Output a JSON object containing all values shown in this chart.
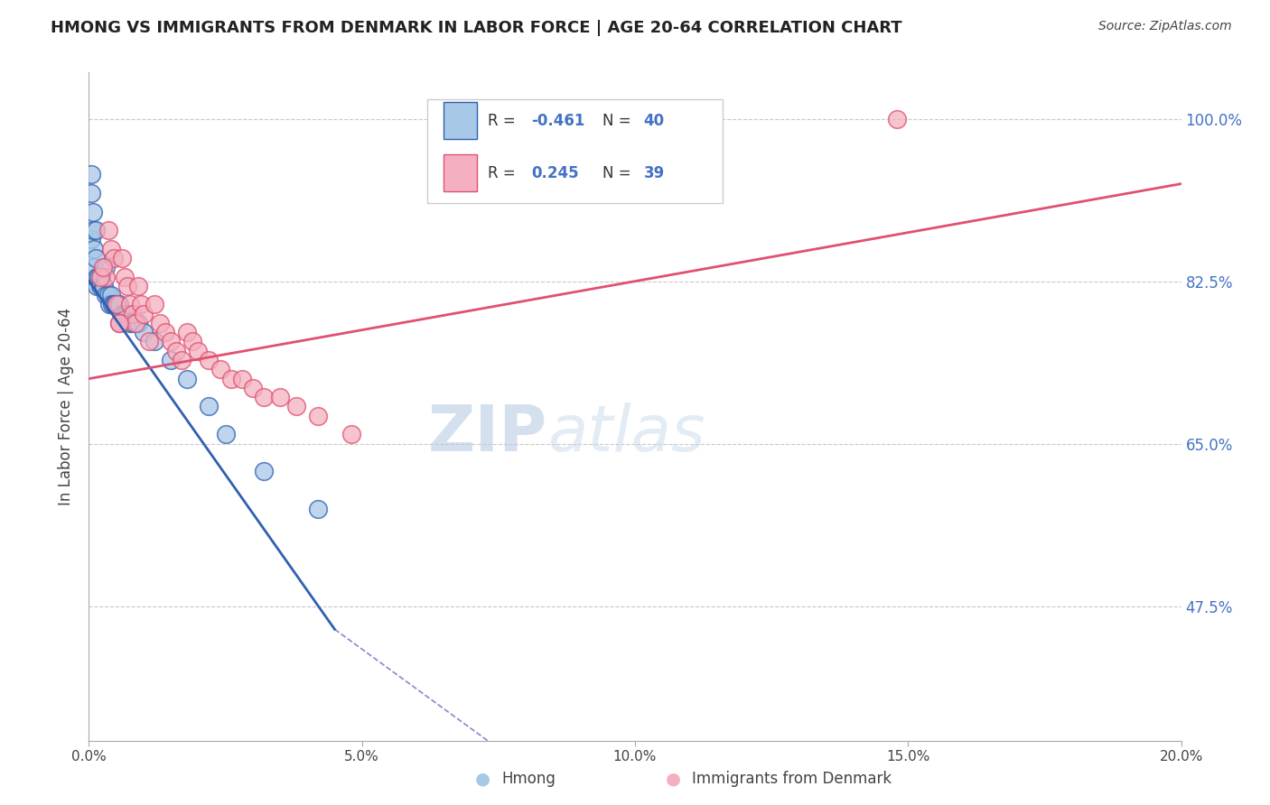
{
  "title": "HMONG VS IMMIGRANTS FROM DENMARK IN LABOR FORCE | AGE 20-64 CORRELATION CHART",
  "source": "Source: ZipAtlas.com",
  "ylabel": "In Labor Force | Age 20-64",
  "legend_label1": "Hmong",
  "legend_label2": "Immigrants from Denmark",
  "xlim": [
    0.0,
    20.0
  ],
  "ylim": [
    33.0,
    105.0
  ],
  "yticks": [
    47.5,
    65.0,
    82.5,
    100.0
  ],
  "xticks": [
    0.0,
    5.0,
    10.0,
    15.0,
    20.0
  ],
  "color_blue": "#A8C8E8",
  "color_pink": "#F4B0C0",
  "color_blue_line": "#3060B0",
  "color_pink_line": "#E05070",
  "color_grid": "#C8C8C8",
  "hmong_x": [
    0.05,
    0.05,
    0.08,
    0.1,
    0.1,
    0.12,
    0.15,
    0.15,
    0.18,
    0.2,
    0.22,
    0.25,
    0.28,
    0.3,
    0.35,
    0.38,
    0.4,
    0.42,
    0.45,
    0.48,
    0.5,
    0.55,
    0.6,
    0.65,
    0.7,
    0.75,
    0.8,
    0.9,
    1.0,
    1.2,
    1.5,
    1.8,
    2.2,
    2.5,
    3.2,
    4.2,
    0.05,
    0.08,
    0.12,
    0.3
  ],
  "hmong_y": [
    92,
    87,
    88,
    86,
    84,
    85,
    83,
    82,
    83,
    82,
    83,
    82,
    82,
    81,
    81,
    80,
    81,
    80,
    80,
    80,
    80,
    80,
    79,
    79,
    79,
    78,
    78,
    78,
    77,
    76,
    74,
    72,
    69,
    66,
    62,
    58,
    94,
    90,
    88,
    84
  ],
  "denmark_x": [
    0.3,
    0.35,
    0.4,
    0.45,
    0.5,
    0.55,
    0.6,
    0.65,
    0.7,
    0.75,
    0.8,
    0.85,
    0.9,
    0.95,
    1.0,
    1.1,
    1.2,
    1.3,
    1.4,
    1.5,
    1.6,
    1.7,
    1.8,
    1.9,
    2.0,
    2.2,
    2.4,
    2.6,
    2.8,
    3.0,
    3.2,
    3.5,
    3.8,
    4.2,
    4.8,
    14.8,
    0.2,
    0.25,
    0.55
  ],
  "denmark_y": [
    83,
    88,
    86,
    85,
    80,
    78,
    85,
    83,
    82,
    80,
    79,
    78,
    82,
    80,
    79,
    76,
    80,
    78,
    77,
    76,
    75,
    74,
    77,
    76,
    75,
    74,
    73,
    72,
    72,
    71,
    70,
    70,
    69,
    68,
    66,
    100,
    83,
    84,
    78
  ],
  "hmong_trend": [
    0.0,
    82.5,
    4.5,
    45.0
  ],
  "denmark_trend": [
    0.0,
    72.0,
    20.0,
    93.0
  ],
  "hmong_dash_trend": [
    4.5,
    45.0,
    8.0,
    30.0
  ],
  "watermark_zip": "ZIP",
  "watermark_atlas": "atlas"
}
